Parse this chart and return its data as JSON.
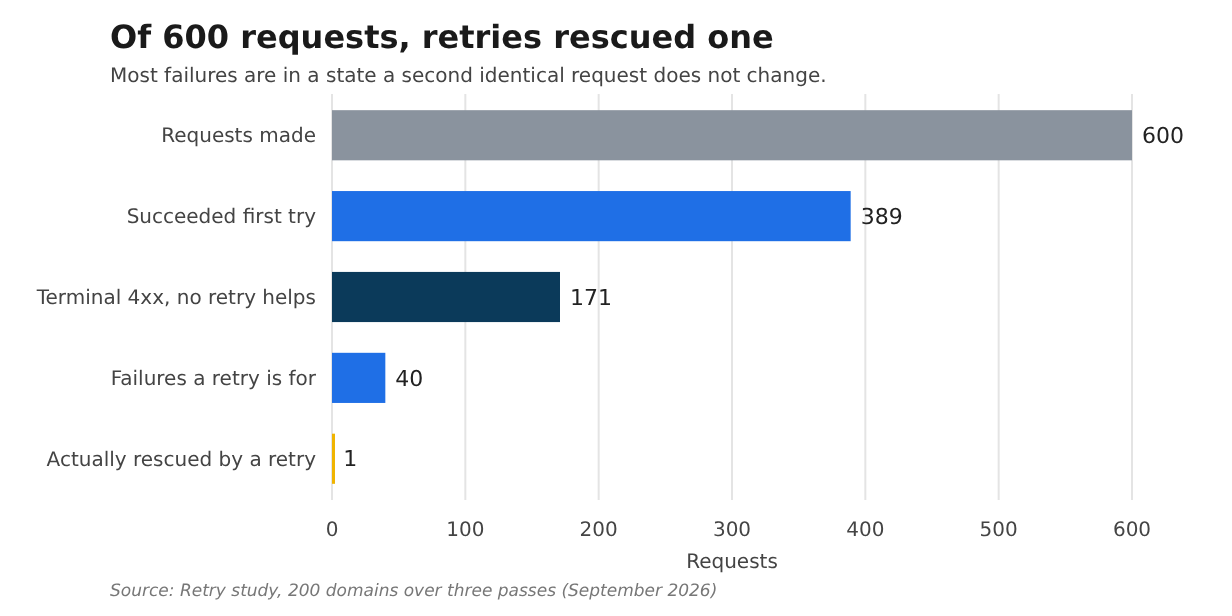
{
  "chart_data": {
    "type": "bar",
    "orientation": "horizontal",
    "title": "Of 600 requests, retries rescued one",
    "subtitle": "Most failures are in a state a second identical request does not change.",
    "xlabel": "Requests",
    "categories": [
      "Requests made",
      "Succeeded first try",
      "Terminal 4xx, no retry helps",
      "Failures a retry is for",
      "Actually rescued by a retry"
    ],
    "values": [
      600,
      389,
      171,
      40,
      1
    ],
    "colors": [
      "#8a939e",
      "#1f6fe6",
      "#0b3a5a",
      "#1f6fe6",
      "#f0b400"
    ],
    "xlim": [
      0,
      600
    ],
    "xticks": [
      0,
      100,
      200,
      300,
      400,
      500,
      600
    ],
    "grid": "x",
    "data_labels": true,
    "annotations": [
      "Source: Retry study, 200 domains over three passes (September 2026)"
    ]
  }
}
